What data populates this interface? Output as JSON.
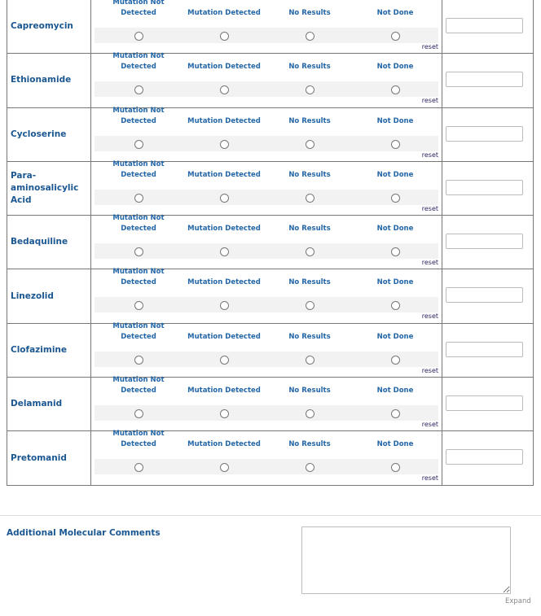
{
  "options": [
    "Mutation Not Detected",
    "Mutation Detected",
    "No Results",
    "Not Done"
  ],
  "reset_label": "reset",
  "drugs": [
    "Capreomycin",
    "Ethionamide",
    "Cycloserine",
    "Para-aminosalicylic Acid",
    "Bedaquiline",
    "Linezolid",
    "Clofazimine",
    "Delamanid",
    "Pretomanid"
  ],
  "comments": {
    "label": "Additional Molecular Comments",
    "value": "",
    "expand_label": "Expand"
  }
}
